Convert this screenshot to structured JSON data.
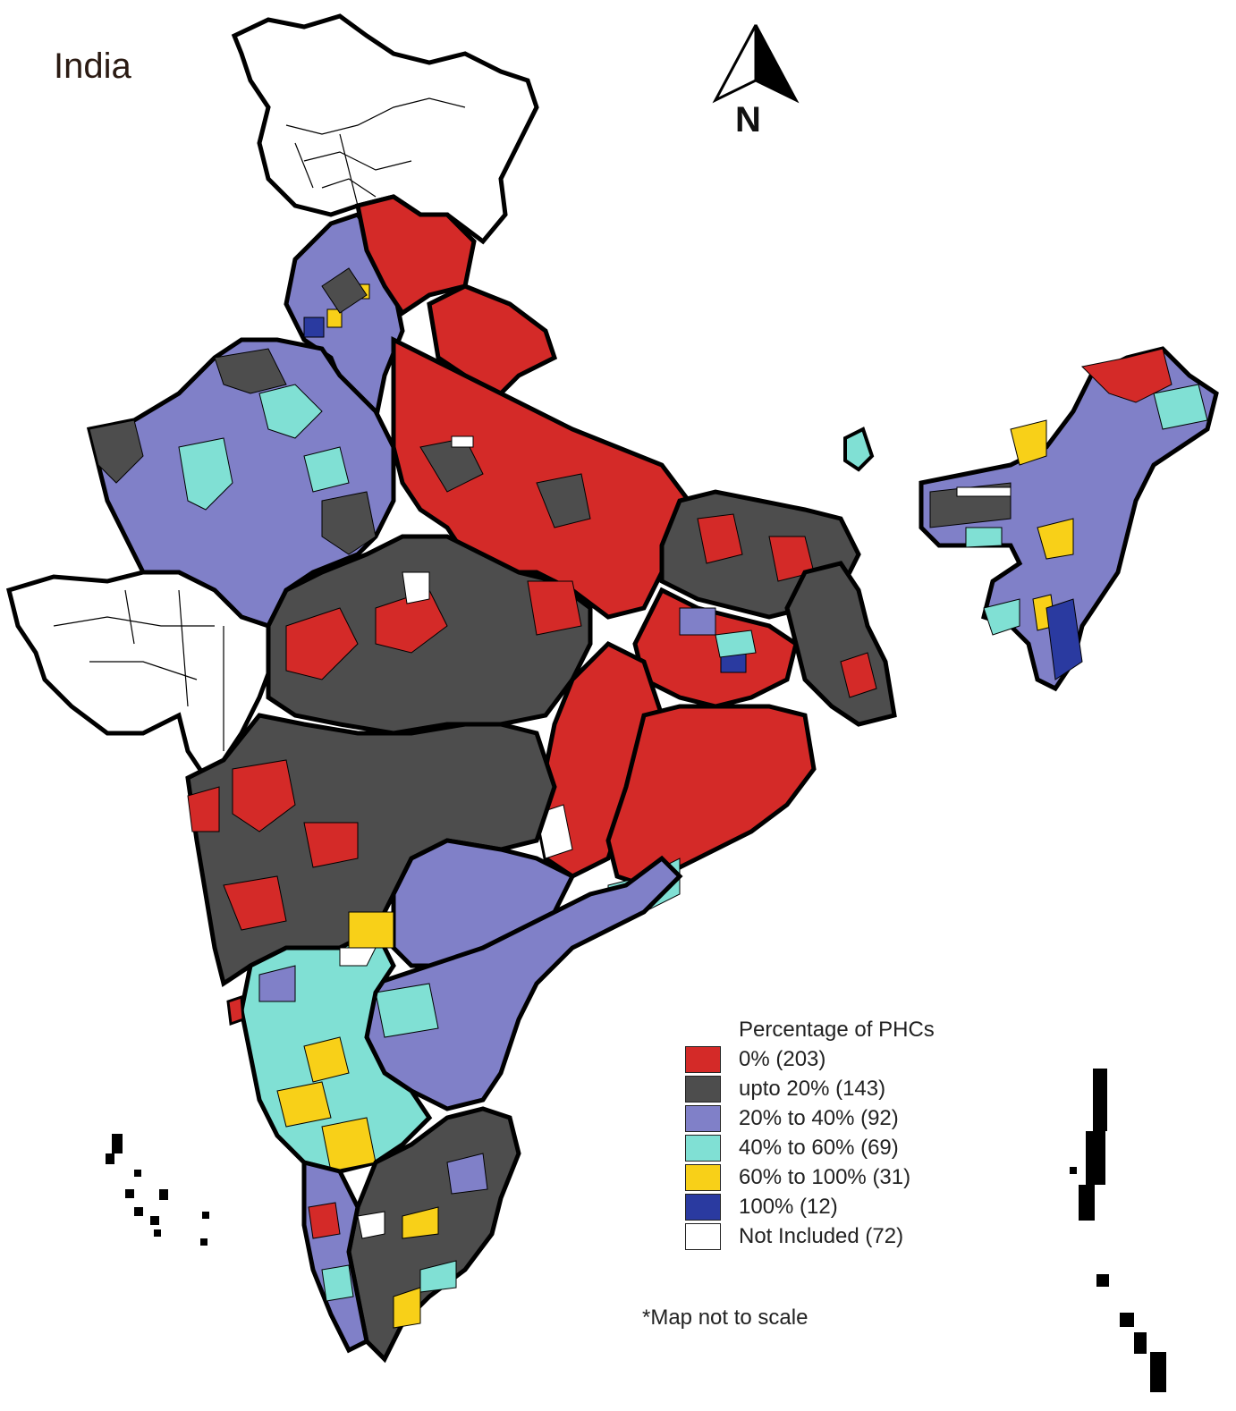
{
  "title": "India",
  "north_label": "N",
  "legend": {
    "title": "Percentage of PHCs",
    "items": [
      {
        "label": "0% (203)",
        "color": "#d42a28"
      },
      {
        "label": "upto 20% (143)",
        "color": "#4d4d4d"
      },
      {
        "label": "20% to 40% (92)",
        "color": "#8080c8"
      },
      {
        "label": "40% to 60% (69)",
        "color": "#80e0d4"
      },
      {
        "label": "60% to 100% (31)",
        "color": "#f8d018"
      },
      {
        "label": "100% (12)",
        "color": "#2a3aa0"
      },
      {
        "label": "Not Included (72)",
        "color": "#ffffff"
      }
    ]
  },
  "footnote": "*Map not to scale",
  "colors": {
    "zero": "#d42a28",
    "upto20": "#4d4d4d",
    "p20_40": "#8080c8",
    "p40_60": "#80e0d4",
    "p60_100": "#f8d018",
    "p100": "#2a3aa0",
    "not_included": "#ffffff",
    "border": "#000000"
  }
}
